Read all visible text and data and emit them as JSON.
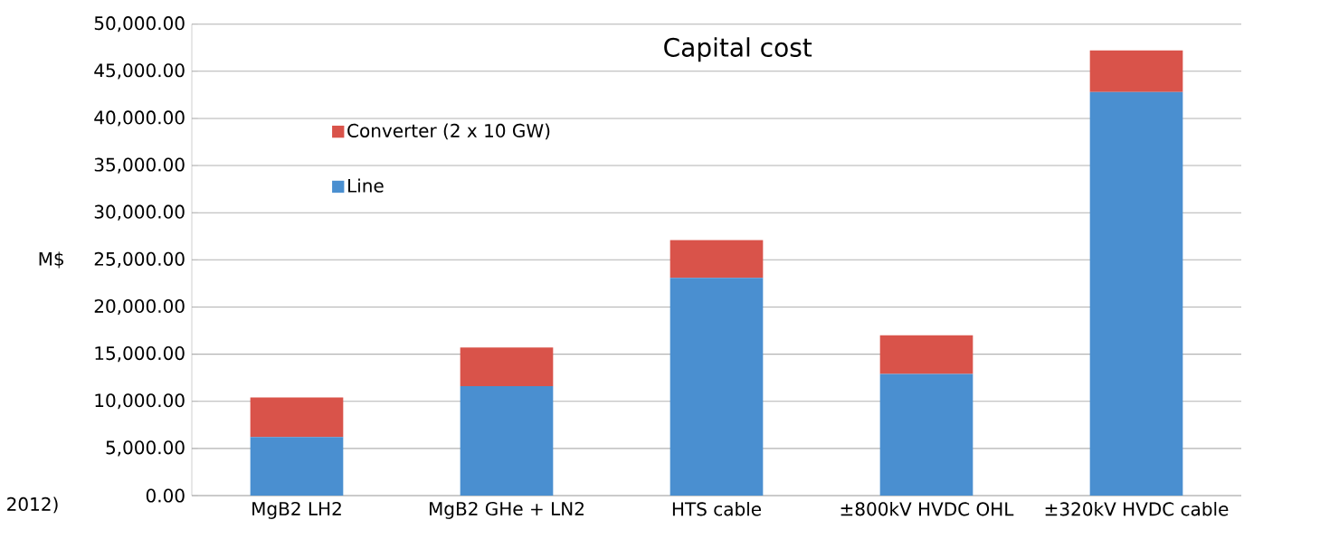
{
  "chart_data": {
    "type": "bar",
    "title": "Capital cost",
    "ylabel": "M$",
    "stacked": true,
    "categories": [
      "MgB2  LH2",
      "MgB2  GHe + LN2",
      "HTS cable",
      "±800kV HVDC OHL",
      "±320kV HVDC cable"
    ],
    "series": [
      {
        "name": "Line",
        "color": "#4a8fd0",
        "values": [
          6200,
          11600,
          23100,
          12900,
          42800
        ]
      },
      {
        "name": "Converter (2 x 10 GW)",
        "color": "#d9534a",
        "values": [
          4200,
          4100,
          4000,
          4100,
          4400
        ]
      }
    ],
    "ylim": [
      0,
      50000
    ],
    "yticks": [
      {
        "value": 0,
        "label": "0.00"
      },
      {
        "value": 5000,
        "label": "5,000.00"
      },
      {
        "value": 10000,
        "label": "10,000.00"
      },
      {
        "value": 15000,
        "label": "15,000.00"
      },
      {
        "value": 20000,
        "label": "20,000.00"
      },
      {
        "value": 25000,
        "label": "25,000.00"
      },
      {
        "value": 30000,
        "label": "30,000.00"
      },
      {
        "value": 35000,
        "label": "35,000.00"
      },
      {
        "value": 40000,
        "label": "40,000.00"
      },
      {
        "value": 45000,
        "label": "45,000.00"
      },
      {
        "value": 50000,
        "label": "50,000.00"
      }
    ],
    "grid": "y",
    "legend": "top left",
    "annotations": [
      "2012)"
    ]
  }
}
